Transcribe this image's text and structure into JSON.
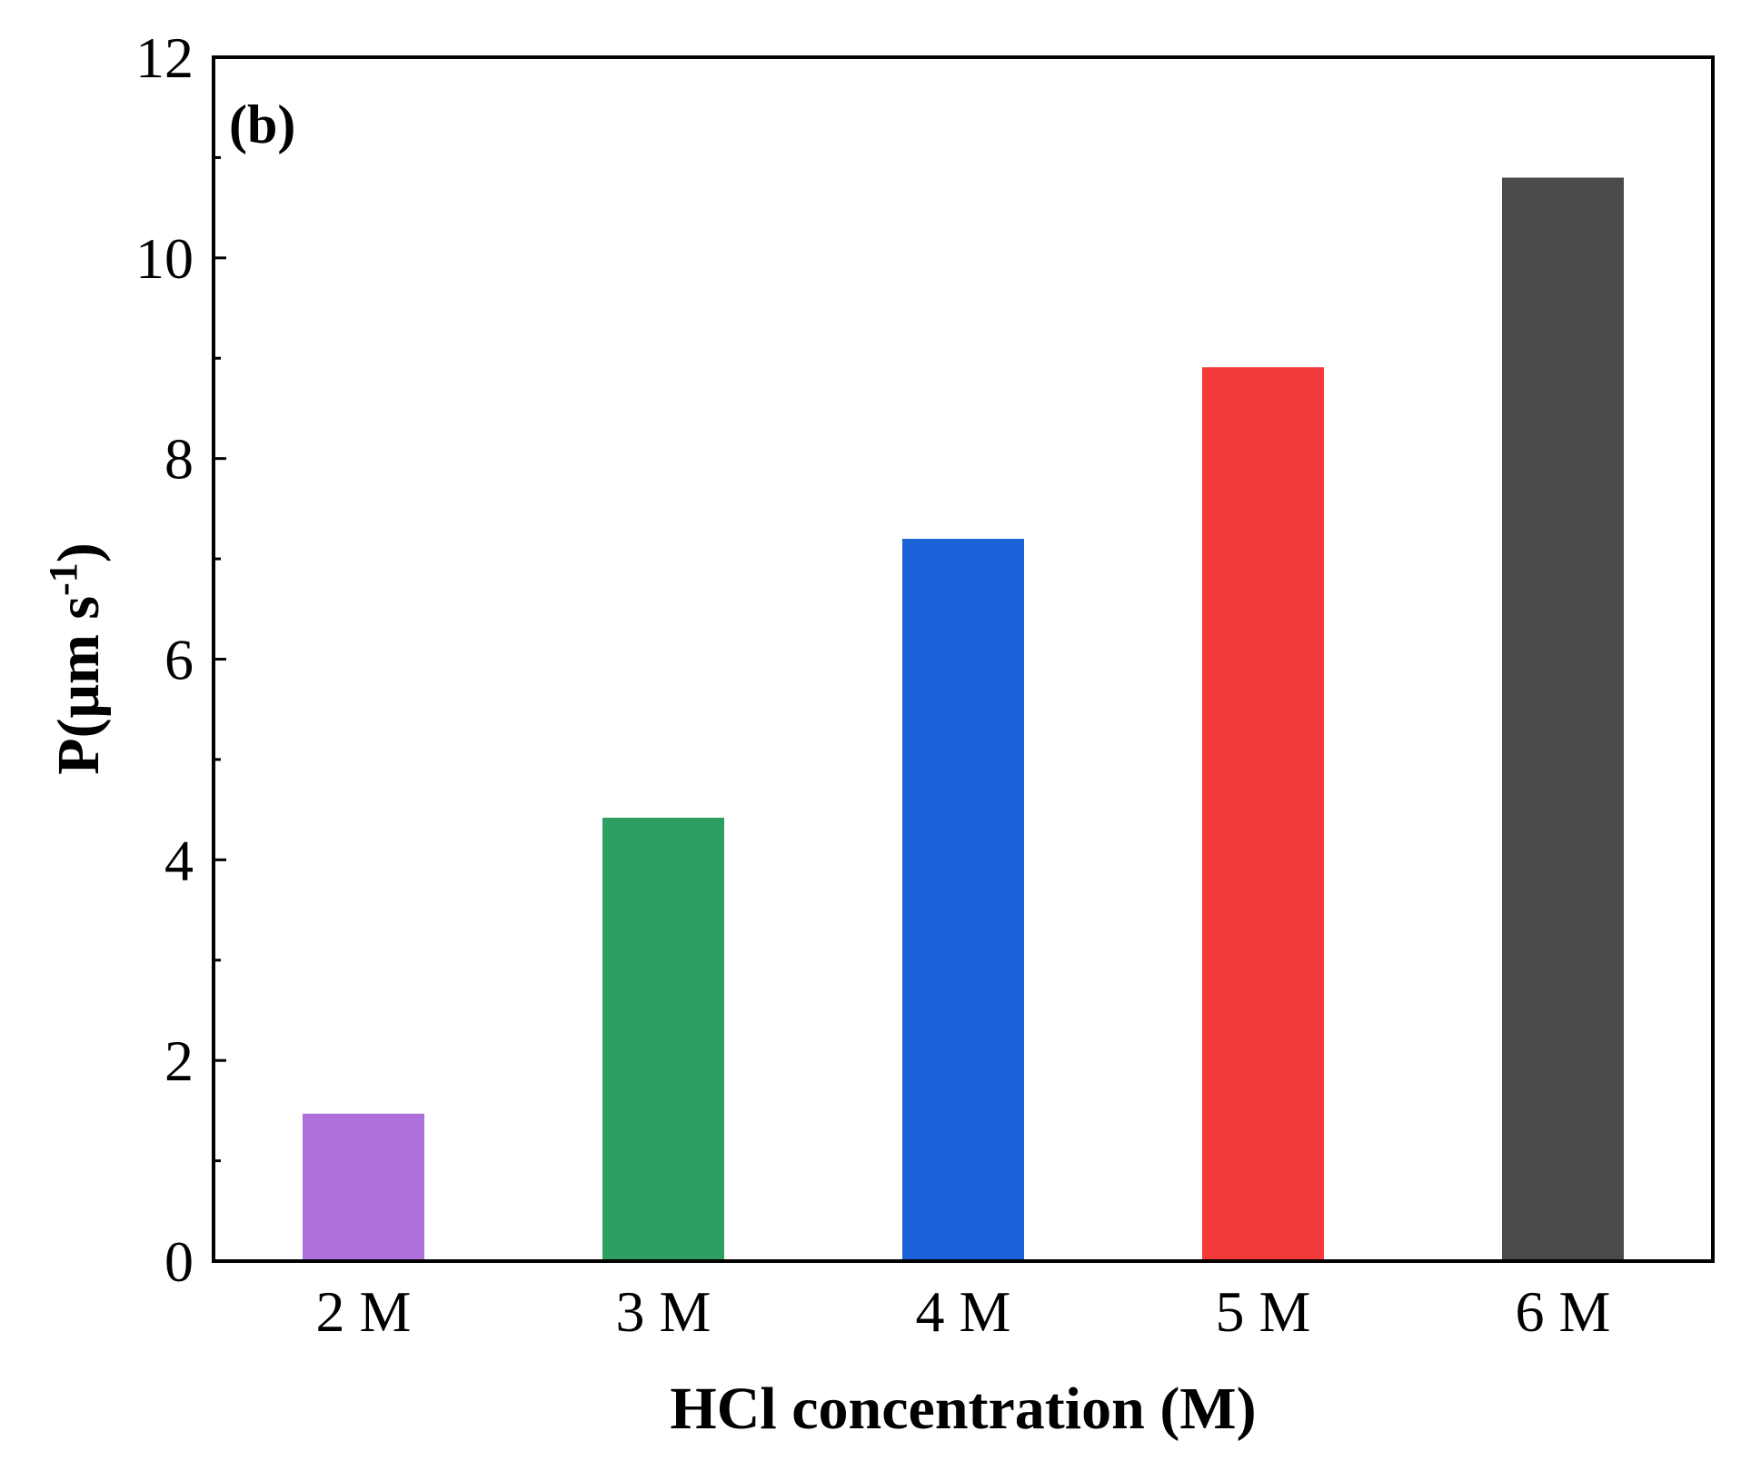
{
  "chart_data": {
    "type": "bar",
    "panel_label": "(b)",
    "xlabel": "HCl concentration (M)",
    "ylabel": "P(μm s⁻¹)",
    "ylabel_parts": {
      "main": "P(μm s",
      "sup": "-1",
      "close": ")"
    },
    "categories": [
      "2 M",
      "3 M",
      "4 M",
      "5 M",
      "6 M"
    ],
    "values": [
      1.47,
      4.42,
      7.2,
      8.91,
      10.8
    ],
    "colors": [
      "#b070dc",
      "#2e9e62",
      "#1a62d8",
      "#f23a3a",
      "#4a4a4a"
    ],
    "ylim": [
      0,
      12
    ],
    "yticks": [
      0,
      2,
      4,
      6,
      8,
      10,
      12
    ],
    "yticks_minor": [
      1,
      3,
      5,
      7,
      9,
      11
    ],
    "grid": false,
    "legend": "none"
  }
}
